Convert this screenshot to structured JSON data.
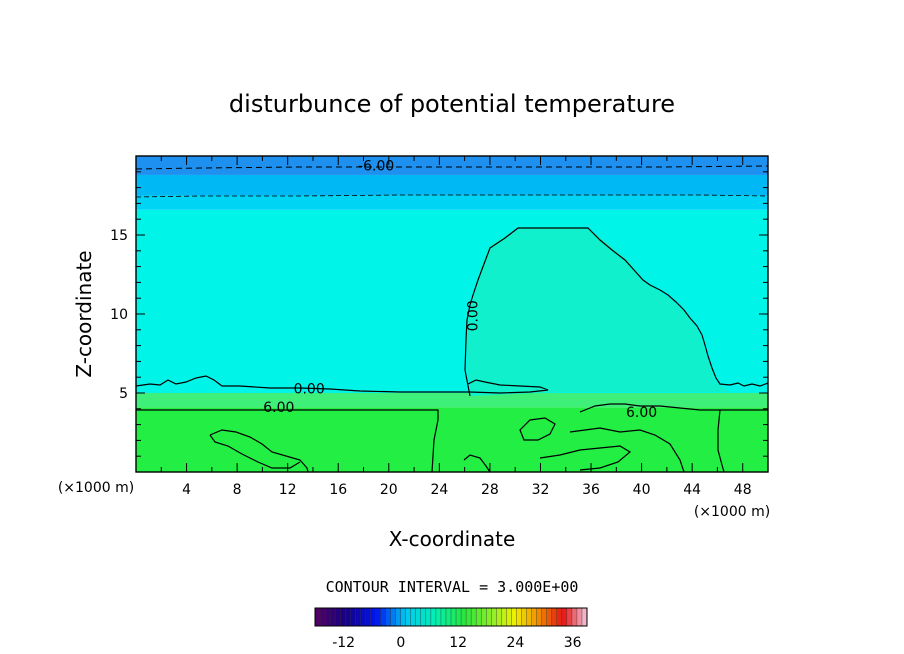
{
  "chart_data": {
    "type": "heatmap",
    "title": "disturbunce of potential temperature",
    "xlabel": "X-coordinate",
    "ylabel": "Z-coordinate",
    "x_unit_left": "(×1000 m)",
    "x_unit_right": "(×1000 m)",
    "xlim": [
      0,
      50
    ],
    "ylim": [
      0,
      20
    ],
    "x_ticks": [
      4,
      8,
      12,
      16,
      20,
      24,
      28,
      32,
      36,
      40,
      44,
      48
    ],
    "y_ticks": [
      5,
      10,
      15
    ],
    "contour_interval_text": "CONTOUR INTERVAL = 3.000E+00",
    "fill_layers": [
      {
        "z_from": 0,
        "z_to": 4.1,
        "color": "#22ee44"
      },
      {
        "z_from": 4.1,
        "z_to": 5.0,
        "color": "#3ef07a"
      },
      {
        "z_from": 5.0,
        "z_to": 16.6,
        "color": "#00f5e8"
      },
      {
        "z_from": 16.6,
        "z_to": 17.5,
        "color": "#00d4f4"
      },
      {
        "z_from": 17.5,
        "z_to": 18.8,
        "color": "#00b8f4"
      },
      {
        "z_from": 18.8,
        "z_to": 20,
        "color": "#1e90f0"
      }
    ],
    "plume_color": "#10f0cc",
    "contour_labels": [
      {
        "text": "-6.00",
        "x": 19,
        "z": 19.4
      },
      {
        "text": "0.00",
        "x": 27,
        "z": 10.2
      },
      {
        "text": "0.00",
        "x": 13.7,
        "z": 5.3
      },
      {
        "text": "6.00",
        "x": 11.3,
        "z": 4.1
      },
      {
        "text": "6.00",
        "x": 40,
        "z": 3.8
      }
    ],
    "colorbar": {
      "min": -18,
      "max": 39,
      "ticks": [
        "-12",
        "0",
        "12",
        "24",
        "36"
      ],
      "tick_values": [
        -12,
        0,
        12,
        24,
        36
      ]
    }
  }
}
